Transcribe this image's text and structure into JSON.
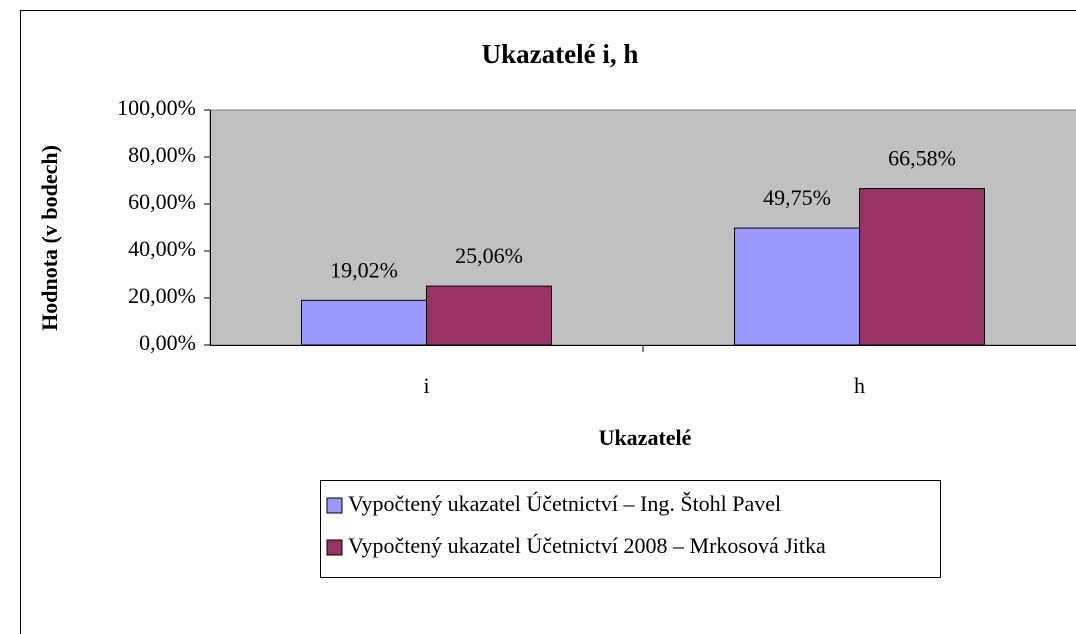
{
  "chart_data": {
    "type": "bar",
    "title": "Ukazatelé i, h",
    "x_label": "Ukazatelé",
    "y_label": "Hodnota (v bodech)",
    "categories": [
      "i",
      "h"
    ],
    "series": [
      {
        "name": "Vypočtený ukazatel Účetnictví – Ing. Štohl Pavel",
        "color": "#9999ff",
        "values": [
          19.02,
          49.75
        ],
        "value_labels": [
          "19,02%",
          "49,75%"
        ]
      },
      {
        "name": "Vypočtený ukazatel Účetnictví 2008 – Mrkosová Jitka",
        "color": "#993366",
        "values": [
          25.06,
          66.58
        ],
        "value_labels": [
          "25,06%",
          "66,58%"
        ]
      }
    ],
    "ylim": [
      0,
      100
    ],
    "yticks": [
      {
        "value": 0,
        "label": "0,00%"
      },
      {
        "value": 20,
        "label": "20,00%"
      },
      {
        "value": 40,
        "label": "40,00%"
      },
      {
        "value": 60,
        "label": "60,00%"
      },
      {
        "value": 80,
        "label": "80,00%"
      },
      {
        "value": 100,
        "label": "100,00%"
      }
    ],
    "plot_background": "#c0c0c0"
  }
}
